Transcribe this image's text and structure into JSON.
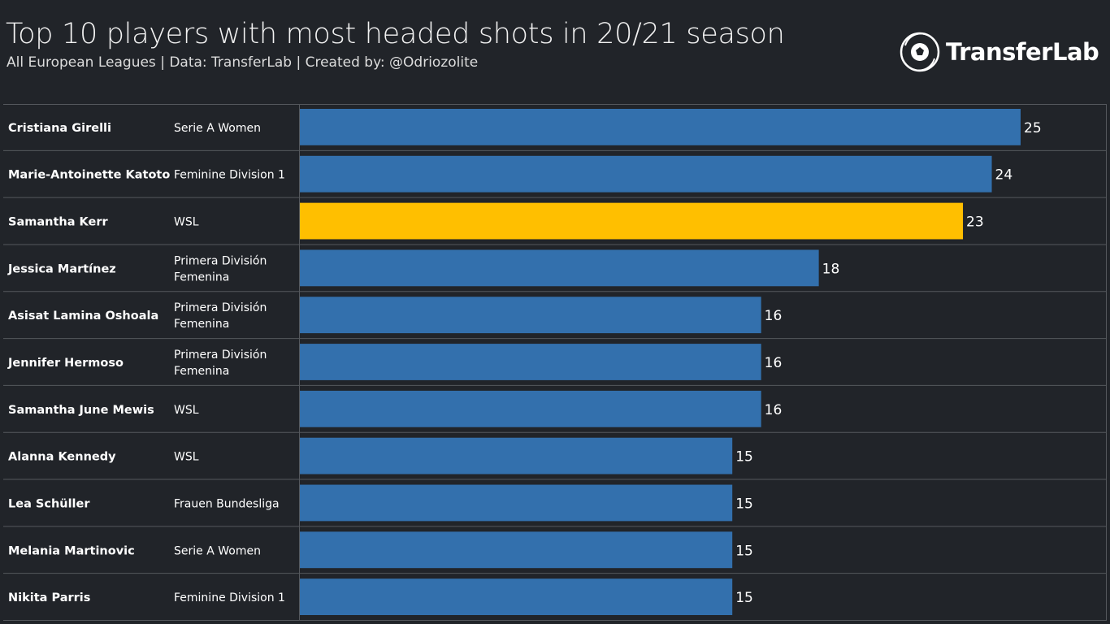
{
  "header": {
    "title": "Top 10 players with most headed shots in 20/21 season",
    "subtitle": "All European Leagues  |  Data: TransferLab  |  Created by: @Odriozolite",
    "logo_text": "TransferLab",
    "logo_icon": "football-icon"
  },
  "colors": {
    "background": "#212429",
    "bar": "#3370ad",
    "highlight": "#ffbf00",
    "grid": "#55585d",
    "text": "#ffffff"
  },
  "chart_data": {
    "type": "bar",
    "orientation": "horizontal",
    "title": "Top 10 players with most headed shots in 20/21 season",
    "xlim": [
      0,
      28
    ],
    "grid": true,
    "rows": [
      {
        "player": "Cristiana Girelli",
        "league": [
          "Serie A Women"
        ],
        "value": 25,
        "highlight": false
      },
      {
        "player": "Marie-Antoinette Katoto",
        "league": [
          "Feminine Division 1"
        ],
        "value": 24,
        "highlight": false
      },
      {
        "player": "Samantha Kerr",
        "league": [
          "WSL"
        ],
        "value": 23,
        "highlight": true
      },
      {
        "player": "Jessica Martínez",
        "league": [
          "Primera División",
          "Femenina"
        ],
        "value": 18,
        "highlight": false
      },
      {
        "player": "Asisat Lamina Oshoala",
        "league": [
          "Primera División",
          "Femenina"
        ],
        "value": 16,
        "highlight": false
      },
      {
        "player": "Jennifer Hermoso",
        "league": [
          "Primera División",
          "Femenina"
        ],
        "value": 16,
        "highlight": false
      },
      {
        "player": "Samantha June Mewis",
        "league": [
          "WSL"
        ],
        "value": 16,
        "highlight": false
      },
      {
        "player": "Alanna Kennedy",
        "league": [
          "WSL"
        ],
        "value": 15,
        "highlight": false
      },
      {
        "player": "Lea Schüller",
        "league": [
          "Frauen Bundesliga"
        ],
        "value": 15,
        "highlight": false
      },
      {
        "player": "Melania Martinovic",
        "league": [
          "Serie A Women"
        ],
        "value": 15,
        "highlight": false
      },
      {
        "player": "Nikita Parris",
        "league": [
          "Feminine Division 1"
        ],
        "value": 15,
        "highlight": false
      }
    ]
  }
}
